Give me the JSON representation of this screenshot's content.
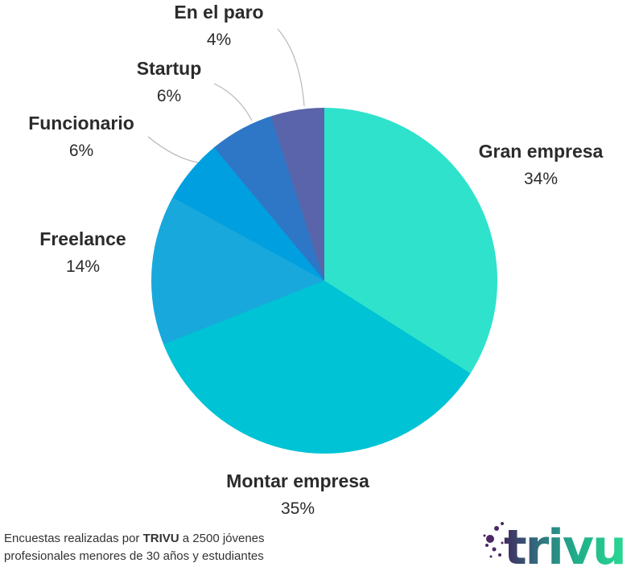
{
  "chart_data": {
    "type": "pie",
    "start_angle_deg": 0,
    "direction": "clockwise",
    "legend": "none",
    "labels_position": "outside",
    "slices": [
      {
        "label": "Gran empresa",
        "value": 34,
        "pct_label": "34%",
        "color": "#2ee2cc"
      },
      {
        "label": "Montar empresa",
        "value": 35,
        "pct_label": "35%",
        "color": "#00c3d5"
      },
      {
        "label": "Freelance",
        "value": 14,
        "pct_label": "14%",
        "color": "#18a8dc"
      },
      {
        "label": "Funcionario",
        "value": 6,
        "pct_label": "6%",
        "color": "#009fe0"
      },
      {
        "label": "Startup",
        "value": 6,
        "pct_label": "6%",
        "color": "#2e77c6"
      },
      {
        "label": "En el paro",
        "value": 4,
        "pct_label": "4%",
        "color": "#5a64aa"
      }
    ]
  },
  "footer": {
    "part1": "Encuestas realizadas por ",
    "brand": "TRIVU",
    "part2": " a 2500 jóvenes",
    "line2": "profesionales menores de 30 años y estudiantes"
  },
  "logo": {
    "text": "trivu",
    "gradient": [
      "#412960",
      "#2f7e83",
      "#1fae89",
      "#2bd993"
    ],
    "dots_color": "#4b2765"
  }
}
